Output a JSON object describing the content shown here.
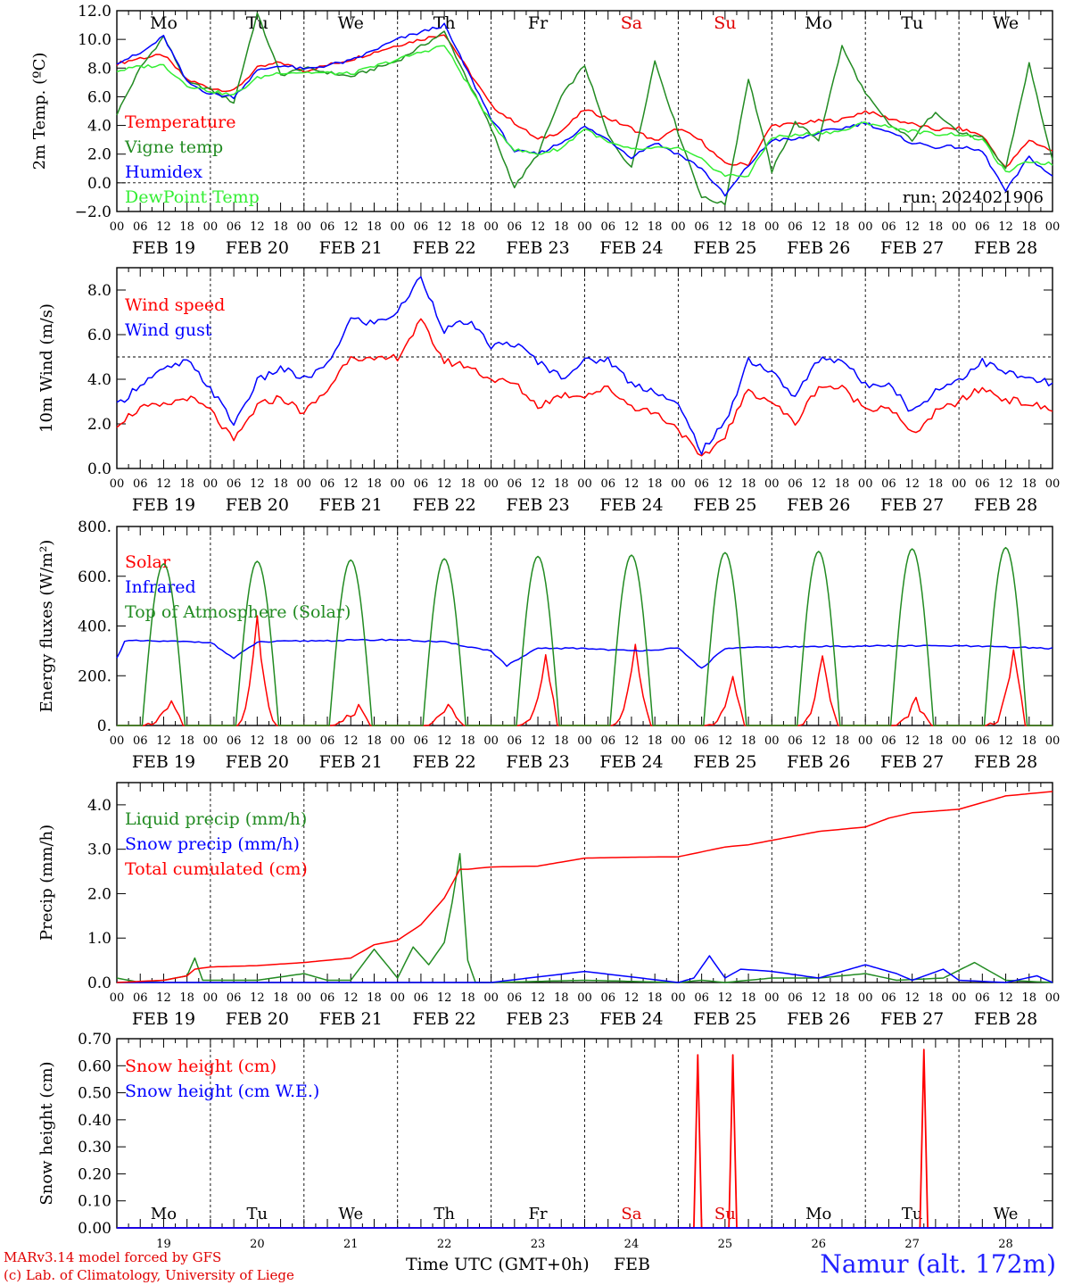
{
  "run_label": "run: 2024021906",
  "hour_ticks": [
    "00",
    "06",
    "12",
    "18"
  ],
  "date_labels": [
    "FEB 19",
    "FEB 20",
    "FEB 21",
    "FEB 22",
    "FEB 23",
    "FEB 24",
    "FEB 25",
    "FEB 26",
    "FEB 27",
    "FEB 28"
  ],
  "day_abbr": [
    "Mo",
    "Tu",
    "We",
    "Th",
    "Fr",
    "Sa",
    "Su",
    "Mo",
    "Tu",
    "We"
  ],
  "day_colors": [
    "#000000",
    "#000000",
    "#000000",
    "#000000",
    "#000000",
    "#e00000",
    "#e00000",
    "#000000",
    "#000000",
    "#000000"
  ],
  "day_numbers": [
    "19",
    "20",
    "21",
    "22",
    "23",
    "24",
    "25",
    "26",
    "27",
    "28"
  ],
  "footer": {
    "model": "MARv3.14 model forced by GFS",
    "lab": "(c) Lab. of Climatology, University of Liege",
    "axis_title": "Time UTC (GMT+0h)",
    "month": "FEB",
    "station": "Namur (alt. 172m)"
  },
  "chart_data": [
    {
      "type": "line",
      "ylabel": "2m Temp. (ºC)",
      "ylim": [
        -2,
        12
      ],
      "yticks": [
        -2,
        0,
        2,
        4,
        6,
        8,
        10,
        12
      ],
      "ytick_labels": [
        "−2.0",
        "0.0",
        "2.0",
        "4.0",
        "6.0",
        "8.0",
        "10.0",
        "12.0"
      ],
      "ref_line": 0,
      "grid": "vertical dotted at day boundaries",
      "legend_position": "left",
      "x_unit": "hours since FEB 19 00 UTC",
      "series": [
        {
          "name": "Temperature",
          "color": "#ff0000",
          "x": [
            0,
            6,
            12,
            18,
            24,
            30,
            36,
            42,
            48,
            60,
            72,
            84,
            96,
            102,
            108,
            114,
            120,
            126,
            132,
            138,
            144,
            150,
            156,
            162,
            168,
            174,
            180,
            186,
            192,
            198,
            204,
            210,
            216,
            222,
            228,
            234,
            240
          ],
          "values": [
            8.3,
            8.7,
            8.9,
            7.2,
            6.6,
            6.4,
            8.0,
            8.4,
            7.8,
            8.6,
            9.6,
            10.4,
            5.4,
            4.2,
            3.0,
            3.6,
            5.1,
            4.5,
            3.8,
            2.9,
            3.8,
            2.9,
            1.3,
            1.3,
            4.0,
            4.1,
            4.3,
            4.4,
            5.0,
            4.5,
            4.1,
            3.7,
            3.8,
            3.3,
            1.0,
            3.0,
            2.2
          ]
        },
        {
          "name": "Vigne temp",
          "color": "#228b22",
          "x": [
            0,
            6,
            12,
            18,
            24,
            30,
            36,
            42,
            48,
            60,
            72,
            84,
            96,
            102,
            108,
            114,
            120,
            126,
            132,
            138,
            144,
            150,
            156,
            162,
            168,
            174,
            180,
            186,
            192,
            198,
            204,
            210,
            216,
            222,
            228,
            234,
            240
          ],
          "values": [
            4.8,
            8.0,
            10.2,
            7.0,
            6.5,
            5.6,
            11.8,
            7.5,
            8.0,
            7.4,
            8.5,
            10.5,
            3.8,
            -0.3,
            2.0,
            6.0,
            8.2,
            3.3,
            1.0,
            8.5,
            3.5,
            -1.0,
            -1.5,
            7.3,
            0.8,
            4.2,
            3.0,
            9.5,
            6.2,
            4.1,
            3.0,
            5.0,
            3.5,
            3.1,
            1.0,
            8.3,
            1.5
          ]
        },
        {
          "name": "Humidex",
          "color": "#0000ff",
          "x": [
            0,
            6,
            12,
            18,
            24,
            30,
            36,
            42,
            48,
            60,
            72,
            84,
            96,
            102,
            108,
            114,
            120,
            126,
            132,
            138,
            144,
            150,
            156,
            162,
            168,
            174,
            180,
            186,
            192,
            198,
            204,
            210,
            216,
            222,
            228,
            234,
            240
          ],
          "values": [
            8.4,
            9.0,
            10.2,
            7.0,
            6.2,
            6.0,
            7.8,
            8.2,
            7.9,
            8.5,
            10.0,
            11.0,
            4.5,
            2.2,
            2.0,
            2.8,
            3.9,
            3.0,
            1.8,
            2.8,
            2.0,
            1.0,
            -0.9,
            1.2,
            3.0,
            3.0,
            3.5,
            3.8,
            4.2,
            3.5,
            2.8,
            2.5,
            2.5,
            2.2,
            -0.6,
            1.8,
            0.4
          ]
        },
        {
          "name": "DewPoint Temp",
          "color": "#33ee33",
          "x": [
            0,
            6,
            12,
            18,
            24,
            30,
            36,
            42,
            48,
            60,
            72,
            84,
            96,
            102,
            108,
            114,
            120,
            126,
            132,
            138,
            144,
            150,
            156,
            162,
            168,
            174,
            180,
            186,
            192,
            198,
            204,
            210,
            216,
            222,
            228,
            234,
            240
          ],
          "values": [
            7.8,
            8.1,
            8.2,
            6.8,
            6.4,
            6.1,
            7.3,
            7.7,
            7.7,
            7.6,
            8.6,
            9.6,
            4.2,
            2.3,
            2.0,
            2.4,
            3.8,
            2.8,
            2.3,
            2.4,
            2.4,
            1.6,
            0.5,
            0.5,
            3.2,
            3.3,
            3.5,
            3.6,
            4.2,
            3.9,
            3.6,
            3.4,
            3.4,
            3.0,
            0.7,
            1.5,
            1.3
          ]
        }
      ]
    },
    {
      "type": "line",
      "ylabel": "10m Wind (m/s)",
      "ylim": [
        0,
        9
      ],
      "yticks": [
        0,
        2,
        4,
        6,
        8
      ],
      "ytick_labels": [
        "0.0",
        "2.0",
        "4.0",
        "6.0",
        "8.0"
      ],
      "ref_line": 5,
      "grid": "vertical dotted at day boundaries",
      "legend_position": "left",
      "x_unit": "hours since FEB 19 00 UTC",
      "series": [
        {
          "name": "Wind speed",
          "color": "#ff0000",
          "x": [
            0,
            6,
            12,
            18,
            24,
            30,
            36,
            42,
            48,
            54,
            60,
            66,
            72,
            78,
            84,
            90,
            96,
            102,
            108,
            114,
            120,
            126,
            132,
            138,
            144,
            150,
            156,
            162,
            168,
            174,
            180,
            186,
            192,
            198,
            204,
            210,
            216,
            222,
            228,
            234,
            240
          ],
          "values": [
            2.0,
            2.7,
            2.8,
            3.2,
            2.6,
            1.2,
            2.8,
            3.2,
            2.5,
            3.5,
            5.1,
            4.8,
            5.0,
            6.6,
            4.8,
            4.6,
            4.0,
            3.8,
            2.8,
            3.3,
            3.3,
            3.6,
            2.8,
            2.5,
            1.8,
            0.4,
            1.5,
            3.5,
            3.0,
            2.0,
            3.7,
            3.6,
            2.7,
            2.8,
            1.5,
            2.5,
            3.0,
            3.6,
            3.1,
            2.9,
            2.6
          ]
        },
        {
          "name": "Wind gust",
          "color": "#0000ff",
          "x": [
            0,
            6,
            12,
            18,
            24,
            30,
            36,
            42,
            48,
            54,
            60,
            66,
            72,
            78,
            84,
            90,
            96,
            102,
            108,
            114,
            120,
            126,
            132,
            138,
            144,
            150,
            156,
            162,
            168,
            174,
            180,
            186,
            192,
            198,
            204,
            210,
            216,
            222,
            228,
            234,
            240
          ],
          "values": [
            2.8,
            3.8,
            4.4,
            4.8,
            3.6,
            2.0,
            3.9,
            4.5,
            4.0,
            4.6,
            6.7,
            6.5,
            7.0,
            8.6,
            6.2,
            6.6,
            5.5,
            5.6,
            4.8,
            4.1,
            4.8,
            4.9,
            3.8,
            3.5,
            2.8,
            0.8,
            2.0,
            4.9,
            4.3,
            3.2,
            4.9,
            4.9,
            3.7,
            3.9,
            2.5,
            3.5,
            4.0,
            4.8,
            4.3,
            4.0,
            3.8
          ]
        }
      ]
    },
    {
      "type": "line",
      "ylabel": "Energy fluxes (W/m²)",
      "ylim": [
        0,
        800
      ],
      "yticks": [
        0,
        200,
        400,
        600,
        800
      ],
      "ytick_labels": [
        "0.",
        "200.",
        "400.",
        "600.",
        "800."
      ],
      "grid": "vertical dotted at day boundaries",
      "legend_position": "left",
      "x_unit": "hours since FEB 19 00 UTC",
      "series": [
        {
          "name": "Solar",
          "color": "#ff0000",
          "peaks_hour": [
            14,
            36,
            62,
            85,
            110,
            133,
            158,
            181,
            205,
            230
          ],
          "peaks_value": [
            95,
            410,
            60,
            65,
            270,
            300,
            175,
            275,
            85,
            290
          ]
        },
        {
          "name": "Infrared",
          "color": "#0000ff",
          "x": [
            0,
            2,
            6,
            24,
            30,
            36,
            48,
            72,
            84,
            96,
            100,
            108,
            120,
            132,
            144,
            150,
            156,
            168,
            192,
            216,
            240
          ],
          "values": [
            270,
            340,
            340,
            335,
            270,
            335,
            340,
            345,
            335,
            300,
            240,
            310,
            310,
            300,
            310,
            230,
            310,
            315,
            320,
            320,
            310
          ]
        },
        {
          "name": "Top of Atmosphere (Solar)",
          "color": "#228b22",
          "peaks_value": [
            650,
            660,
            665,
            670,
            680,
            685,
            695,
            700,
            710,
            715
          ],
          "sunrise_hour": 6.5,
          "sunset_hour": 17.5
        }
      ]
    },
    {
      "type": "line",
      "ylabel": "Precip (mm/h)",
      "ylim": [
        0,
        4.5
      ],
      "yticks": [
        0,
        1,
        2,
        3,
        4
      ],
      "ytick_labels": [
        "0.0",
        "1.0",
        "2.0",
        "3.0",
        "4.0"
      ],
      "grid": "vertical dotted at day boundaries",
      "legend_position": "left",
      "x_unit": "hours since FEB 19 00 UTC",
      "series": [
        {
          "name": "Liquid precip (mm/h)",
          "color": "#228b22",
          "x": [
            0,
            6,
            12,
            18,
            20,
            22,
            24,
            36,
            48,
            54,
            60,
            66,
            72,
            76,
            80,
            84,
            86,
            88,
            90,
            92,
            96,
            120,
            144,
            150,
            156,
            168,
            180,
            192,
            200,
            212,
            220,
            228,
            240
          ],
          "values": [
            0.1,
            0.0,
            0.05,
            0.15,
            0.55,
            0.05,
            0.05,
            0.05,
            0.2,
            0.05,
            0.05,
            0.75,
            0.1,
            0.8,
            0.4,
            0.9,
            1.8,
            2.9,
            0.5,
            0.0,
            0.0,
            0.05,
            0.0,
            0.05,
            0.0,
            0.1,
            0.1,
            0.2,
            0.05,
            0.1,
            0.45,
            0.05,
            0.0
          ]
        },
        {
          "name": "Snow precip (mm/h)",
          "color": "#0000ff",
          "x": [
            0,
            96,
            120,
            144,
            148,
            152,
            156,
            160,
            168,
            180,
            192,
            200,
            204,
            212,
            216,
            228,
            236,
            240
          ],
          "values": [
            0.0,
            0.0,
            0.25,
            0.0,
            0.1,
            0.6,
            0.1,
            0.3,
            0.25,
            0.1,
            0.4,
            0.2,
            0.05,
            0.3,
            0.05,
            0.0,
            0.15,
            0.0
          ]
        },
        {
          "name": "Total cumulated (cm)",
          "color": "#ff0000",
          "x": [
            0,
            12,
            18,
            20,
            24,
            36,
            48,
            60,
            66,
            72,
            78,
            84,
            88,
            90,
            96,
            108,
            120,
            132,
            144,
            156,
            162,
            168,
            174,
            180,
            192,
            198,
            204,
            216,
            222,
            228,
            240
          ],
          "values": [
            0.0,
            0.05,
            0.15,
            0.3,
            0.35,
            0.38,
            0.45,
            0.55,
            0.85,
            0.95,
            1.3,
            1.9,
            2.55,
            2.55,
            2.6,
            2.62,
            2.8,
            2.82,
            2.83,
            3.05,
            3.1,
            3.2,
            3.3,
            3.4,
            3.5,
            3.7,
            3.82,
            3.9,
            4.05,
            4.2,
            4.3
          ]
        }
      ]
    },
    {
      "type": "line",
      "ylabel": "Snow height (cm)",
      "ylim": [
        0,
        0.7
      ],
      "yticks": [
        0,
        0.1,
        0.2,
        0.3,
        0.4,
        0.5,
        0.6,
        0.7
      ],
      "ytick_labels": [
        "0.00",
        "0.10",
        "0.20",
        "0.30",
        "0.40",
        "0.50",
        "0.60",
        "0.70"
      ],
      "grid": "vertical dotted at day boundaries",
      "legend_position": "left",
      "x_unit": "hours since FEB 19 00 UTC",
      "series": [
        {
          "name": "Snow height (cm)",
          "color": "#ff0000",
          "spikes_hour": [
            149,
            158,
            207
          ],
          "spikes_value": [
            0.64,
            0.64,
            0.66
          ]
        },
        {
          "name": "Snow height (cm W.E.)",
          "color": "#0000ff",
          "x": [
            0,
            240
          ],
          "values": [
            0,
            0
          ]
        }
      ]
    }
  ]
}
